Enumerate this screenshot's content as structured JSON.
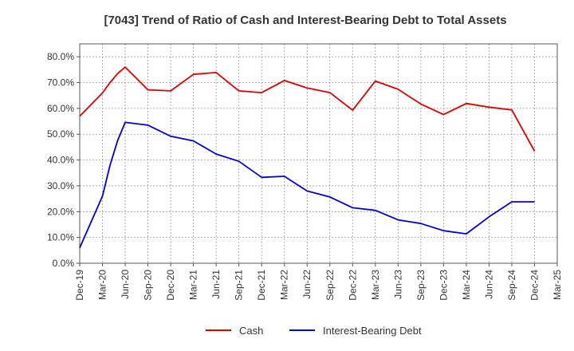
{
  "chart_data": {
    "type": "line",
    "title": "[7043]  Trend of Ratio of Cash and Interest-Bearing Debt to Total Assets",
    "xlabel": "",
    "ylabel": "",
    "x": [
      "Dec-19",
      "Jan-20",
      "Feb-20",
      "Mar-20",
      "Apr-20",
      "May-20",
      "Jun-20",
      "Sep-20",
      "Dec-20",
      "Mar-21",
      "Jun-21",
      "Sep-21",
      "Dec-21",
      "Mar-22",
      "Jun-22",
      "Sep-22",
      "Dec-22",
      "Mar-23",
      "Jun-23",
      "Sep-23",
      "Dec-23",
      "Mar-24",
      "Jun-24",
      "Sep-24",
      "Dec-24"
    ],
    "x_ticks": [
      "Dec-19",
      "Mar-20",
      "Jun-20",
      "Sep-20",
      "Dec-20",
      "Mar-21",
      "Jun-21",
      "Sep-21",
      "Dec-21",
      "Mar-22",
      "Jun-22",
      "Sep-22",
      "Dec-22",
      "Mar-23",
      "Jun-23",
      "Sep-23",
      "Dec-23",
      "Mar-24",
      "Jun-24",
      "Sep-24",
      "Dec-24",
      "Mar-25"
    ],
    "y_ticks": [
      "0.0%",
      "10.0%",
      "20.0%",
      "30.0%",
      "40.0%",
      "50.0%",
      "60.0%",
      "70.0%",
      "80.0%"
    ],
    "ylim": [
      0,
      85
    ],
    "grid": true,
    "legend_position": "bottom-center",
    "series": [
      {
        "name": "Cash",
        "color": "#e00000",
        "points": [
          [
            "Dec-19",
            57.0
          ],
          [
            "Mar-20",
            66.0
          ],
          [
            "Apr-20",
            70.0
          ],
          [
            "May-20",
            73.5
          ],
          [
            "Jun-20",
            76.0
          ],
          [
            "Sep-20",
            67.2
          ],
          [
            "Dec-20",
            66.8
          ],
          [
            "Mar-21",
            73.2
          ],
          [
            "Jun-21",
            73.9
          ],
          [
            "Sep-21",
            66.8
          ],
          [
            "Dec-21",
            66.1
          ],
          [
            "Mar-22",
            70.8
          ],
          [
            "Jun-22",
            67.9
          ],
          [
            "Sep-22",
            66.1
          ],
          [
            "Dec-22",
            59.3
          ],
          [
            "Mar-23",
            70.6
          ],
          [
            "Jun-23",
            67.4
          ],
          [
            "Sep-23",
            61.7
          ],
          [
            "Dec-23",
            57.6
          ],
          [
            "Mar-24",
            61.9
          ],
          [
            "Jun-24",
            60.5
          ],
          [
            "Sep-24",
            59.4
          ],
          [
            "Dec-24",
            43.4
          ]
        ]
      },
      {
        "name": "Interest-Bearing Debt",
        "color": "#0000dd",
        "points": [
          [
            "Dec-19",
            6.0
          ],
          [
            "Mar-20",
            26.0
          ],
          [
            "Apr-20",
            38.0
          ],
          [
            "May-20",
            47.5
          ],
          [
            "Jun-20",
            54.6
          ],
          [
            "Sep-20",
            53.5
          ],
          [
            "Dec-20",
            49.2
          ],
          [
            "Mar-21",
            47.4
          ],
          [
            "Jun-21",
            42.3
          ],
          [
            "Sep-21",
            39.5
          ],
          [
            "Dec-21",
            33.3
          ],
          [
            "Mar-22",
            33.7
          ],
          [
            "Jun-22",
            28.0
          ],
          [
            "Sep-22",
            25.7
          ],
          [
            "Dec-22",
            21.5
          ],
          [
            "Mar-23",
            20.5
          ],
          [
            "Jun-23",
            16.8
          ],
          [
            "Sep-23",
            15.4
          ],
          [
            "Dec-23",
            12.6
          ],
          [
            "Mar-24",
            11.4
          ],
          [
            "Jun-24",
            18.0
          ],
          [
            "Sep-24",
            23.8
          ],
          [
            "Dec-24",
            23.8
          ]
        ]
      }
    ]
  }
}
